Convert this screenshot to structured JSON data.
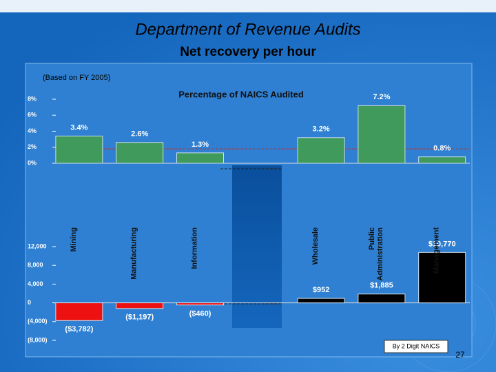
{
  "header": {
    "title": "Department of Revenue Audits",
    "subtitle": "Net recovery per hour",
    "note": "(Based on FY 2005)",
    "footer_box": "By 2 Digit NAICS",
    "page_number": "27"
  },
  "chart_data": [
    {
      "type": "bar",
      "title": "Percentage of NAICS Audited",
      "categories": [
        "Mining",
        "Manufacturing",
        "Information",
        null,
        "Wholesale",
        "Public Administration",
        "Management"
      ],
      "values": [
        3.4,
        2.6,
        1.3,
        null,
        3.2,
        7.2,
        0.8
      ],
      "value_labels": [
        "3.4%",
        "2.6%",
        "1.3%",
        null,
        "3.2%",
        "7.2%",
        "0.8%"
      ],
      "color": "#3f9a5c",
      "ylim": [
        0,
        8
      ],
      "yticks": [
        {
          "value": 0,
          "label": "0%"
        },
        {
          "value": 2,
          "label": "2%"
        },
        {
          "value": 4,
          "label": "4%"
        },
        {
          "value": 6,
          "label": "6%"
        },
        {
          "value": 8,
          "label": "8%"
        }
      ],
      "reference_line": 1.8,
      "reference_color": "#c03030"
    },
    {
      "type": "bar",
      "values": [
        -3782,
        -1197,
        -460,
        null,
        952,
        1885,
        10770
      ],
      "value_labels": [
        "($3,782)",
        "($1,197)",
        "($460)",
        null,
        "$952",
        "$1,885",
        "$10,770"
      ],
      "positive_color": "#000000",
      "negative_color": "#ee1111",
      "ylim": [
        -8000,
        12000
      ],
      "yticks": [
        {
          "value": -8000,
          "label": "(8,000)"
        },
        {
          "value": -4000,
          "label": "(4,000)"
        },
        0,
        {
          "value": 4000,
          "label": "4,000"
        },
        {
          "value": 8000,
          "label": "8,000"
        },
        {
          "value": 12000,
          "label": "12,000"
        }
      ]
    }
  ]
}
